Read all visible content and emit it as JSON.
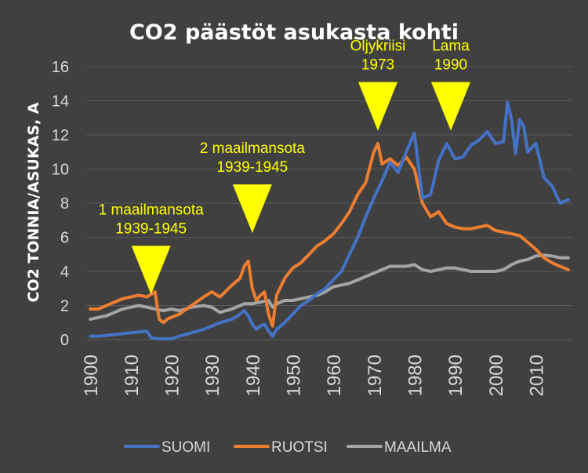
{
  "chart_data": {
    "type": "line",
    "title": "CO2 päästöt asukasta kohti",
    "xlabel": "",
    "ylabel": "CO2 TONNIA/ASUKAS, A",
    "xlim": [
      1900,
      2018
    ],
    "ylim": [
      0,
      16
    ],
    "yticks": [
      0,
      2,
      4,
      6,
      8,
      10,
      12,
      14,
      16
    ],
    "xticks": [
      1900,
      1910,
      1920,
      1930,
      1940,
      1950,
      1960,
      1970,
      1980,
      1990,
      2000,
      2010
    ],
    "grid": true,
    "legend_position": "bottom",
    "colors": {
      "background": "#404040",
      "grid": "#5a5a5a",
      "text": "#d9d9d9",
      "annotation": "#ffff00"
    },
    "series": [
      {
        "name": "SUOMI",
        "color": "#4472c4",
        "x": [
          1900,
          1902,
          1904,
          1906,
          1908,
          1910,
          1912,
          1914,
          1915,
          1917,
          1920,
          1922,
          1925,
          1928,
          1930,
          1932,
          1935,
          1937,
          1938,
          1939,
          1940,
          1941,
          1942,
          1943,
          1944,
          1945,
          1946,
          1948,
          1950,
          1952,
          1954,
          1956,
          1958,
          1960,
          1962,
          1964,
          1966,
          1968,
          1970,
          1972,
          1974,
          1976,
          1978,
          1980,
          1982,
          1984,
          1986,
          1988,
          1990,
          1992,
          1994,
          1996,
          1998,
          2000,
          2002,
          2003,
          2004,
          2005,
          2006,
          2007,
          2008,
          2010,
          2012,
          2014,
          2016,
          2018
        ],
        "y": [
          0.2,
          0.2,
          0.25,
          0.3,
          0.35,
          0.4,
          0.45,
          0.5,
          0.1,
          0.05,
          0.05,
          0.2,
          0.4,
          0.6,
          0.8,
          1.0,
          1.2,
          1.5,
          1.7,
          1.4,
          0.9,
          0.6,
          0.8,
          0.9,
          0.5,
          0.2,
          0.6,
          1.0,
          1.5,
          2.0,
          2.3,
          2.7,
          3.0,
          3.5,
          4.0,
          5.0,
          6.0,
          7.2,
          8.3,
          9.3,
          10.4,
          9.8,
          11.0,
          12.1,
          8.3,
          8.5,
          10.5,
          11.5,
          10.6,
          10.7,
          11.4,
          11.7,
          12.2,
          11.5,
          11.6,
          13.9,
          12.9,
          10.9,
          12.9,
          12.5,
          11.0,
          11.5,
          9.5,
          9.0,
          8.0,
          8.2
        ]
      },
      {
        "name": "RUOTSI",
        "color": "#ed7d31",
        "x": [
          1900,
          1902,
          1904,
          1906,
          1908,
          1910,
          1912,
          1914,
          1916,
          1917,
          1918,
          1919,
          1920,
          1922,
          1925,
          1928,
          1930,
          1932,
          1935,
          1937,
          1938,
          1939,
          1940,
          1941,
          1942,
          1943,
          1944,
          1945,
          1946,
          1948,
          1950,
          1952,
          1954,
          1956,
          1958,
          1960,
          1962,
          1964,
          1966,
          1968,
          1970,
          1971,
          1972,
          1974,
          1976,
          1978,
          1980,
          1982,
          1984,
          1986,
          1988,
          1990,
          1992,
          1994,
          1996,
          1998,
          2000,
          2002,
          2004,
          2006,
          2008,
          2010,
          2012,
          2014,
          2016,
          2018
        ],
        "y": [
          1.8,
          1.8,
          2.0,
          2.2,
          2.4,
          2.5,
          2.6,
          2.5,
          2.8,
          1.2,
          1.0,
          1.2,
          1.3,
          1.5,
          2.0,
          2.5,
          2.8,
          2.5,
          3.2,
          3.6,
          4.3,
          4.6,
          3.0,
          2.3,
          2.6,
          2.8,
          1.5,
          0.8,
          2.6,
          3.6,
          4.2,
          4.5,
          5.0,
          5.5,
          5.8,
          6.2,
          6.8,
          7.5,
          8.5,
          9.2,
          11.0,
          11.5,
          10.3,
          10.6,
          10.2,
          10.7,
          10.0,
          8.0,
          7.2,
          7.5,
          6.8,
          6.6,
          6.5,
          6.5,
          6.6,
          6.7,
          6.4,
          6.3,
          6.2,
          6.1,
          5.7,
          5.3,
          4.8,
          4.5,
          4.3,
          4.1
        ]
      },
      {
        "name": "MAAILMA",
        "color": "#a5a5a5",
        "x": [
          1900,
          1902,
          1904,
          1906,
          1908,
          1910,
          1912,
          1914,
          1916,
          1918,
          1920,
          1922,
          1925,
          1928,
          1930,
          1932,
          1935,
          1938,
          1940,
          1942,
          1944,
          1945,
          1946,
          1948,
          1950,
          1952,
          1954,
          1956,
          1958,
          1960,
          1962,
          1964,
          1966,
          1968,
          1970,
          1972,
          1974,
          1976,
          1978,
          1980,
          1982,
          1984,
          1986,
          1988,
          1990,
          1992,
          1994,
          1996,
          1998,
          2000,
          2002,
          2004,
          2006,
          2008,
          2010,
          2012,
          2014,
          2016,
          2018
        ],
        "y": [
          1.2,
          1.3,
          1.4,
          1.6,
          1.8,
          1.9,
          2.0,
          1.9,
          1.8,
          1.7,
          1.8,
          1.7,
          1.9,
          2.0,
          1.9,
          1.6,
          1.8,
          2.1,
          2.1,
          2.2,
          2.3,
          1.9,
          2.1,
          2.3,
          2.3,
          2.4,
          2.5,
          2.6,
          2.8,
          3.1,
          3.2,
          3.3,
          3.5,
          3.7,
          3.9,
          4.1,
          4.3,
          4.3,
          4.3,
          4.4,
          4.1,
          4.0,
          4.1,
          4.2,
          4.2,
          4.1,
          4.0,
          4.0,
          4.0,
          4.0,
          4.1,
          4.4,
          4.6,
          4.7,
          4.9,
          4.95,
          4.9,
          4.8,
          4.8
        ]
      }
    ],
    "annotations": [
      {
        "lines": [
          "1 maailmansota",
          "1939-1945"
        ],
        "x": 1915,
        "y": 5.5
      },
      {
        "lines": [
          "2 maailmansota",
          "1939-1945"
        ],
        "x": 1940,
        "y": 9.1
      },
      {
        "lines": [
          "Öljykriisi",
          "1973"
        ],
        "x": 1971,
        "y": 15.1
      },
      {
        "lines": [
          "Lama",
          "1990"
        ],
        "x": 1989,
        "y": 15.1
      }
    ]
  }
}
